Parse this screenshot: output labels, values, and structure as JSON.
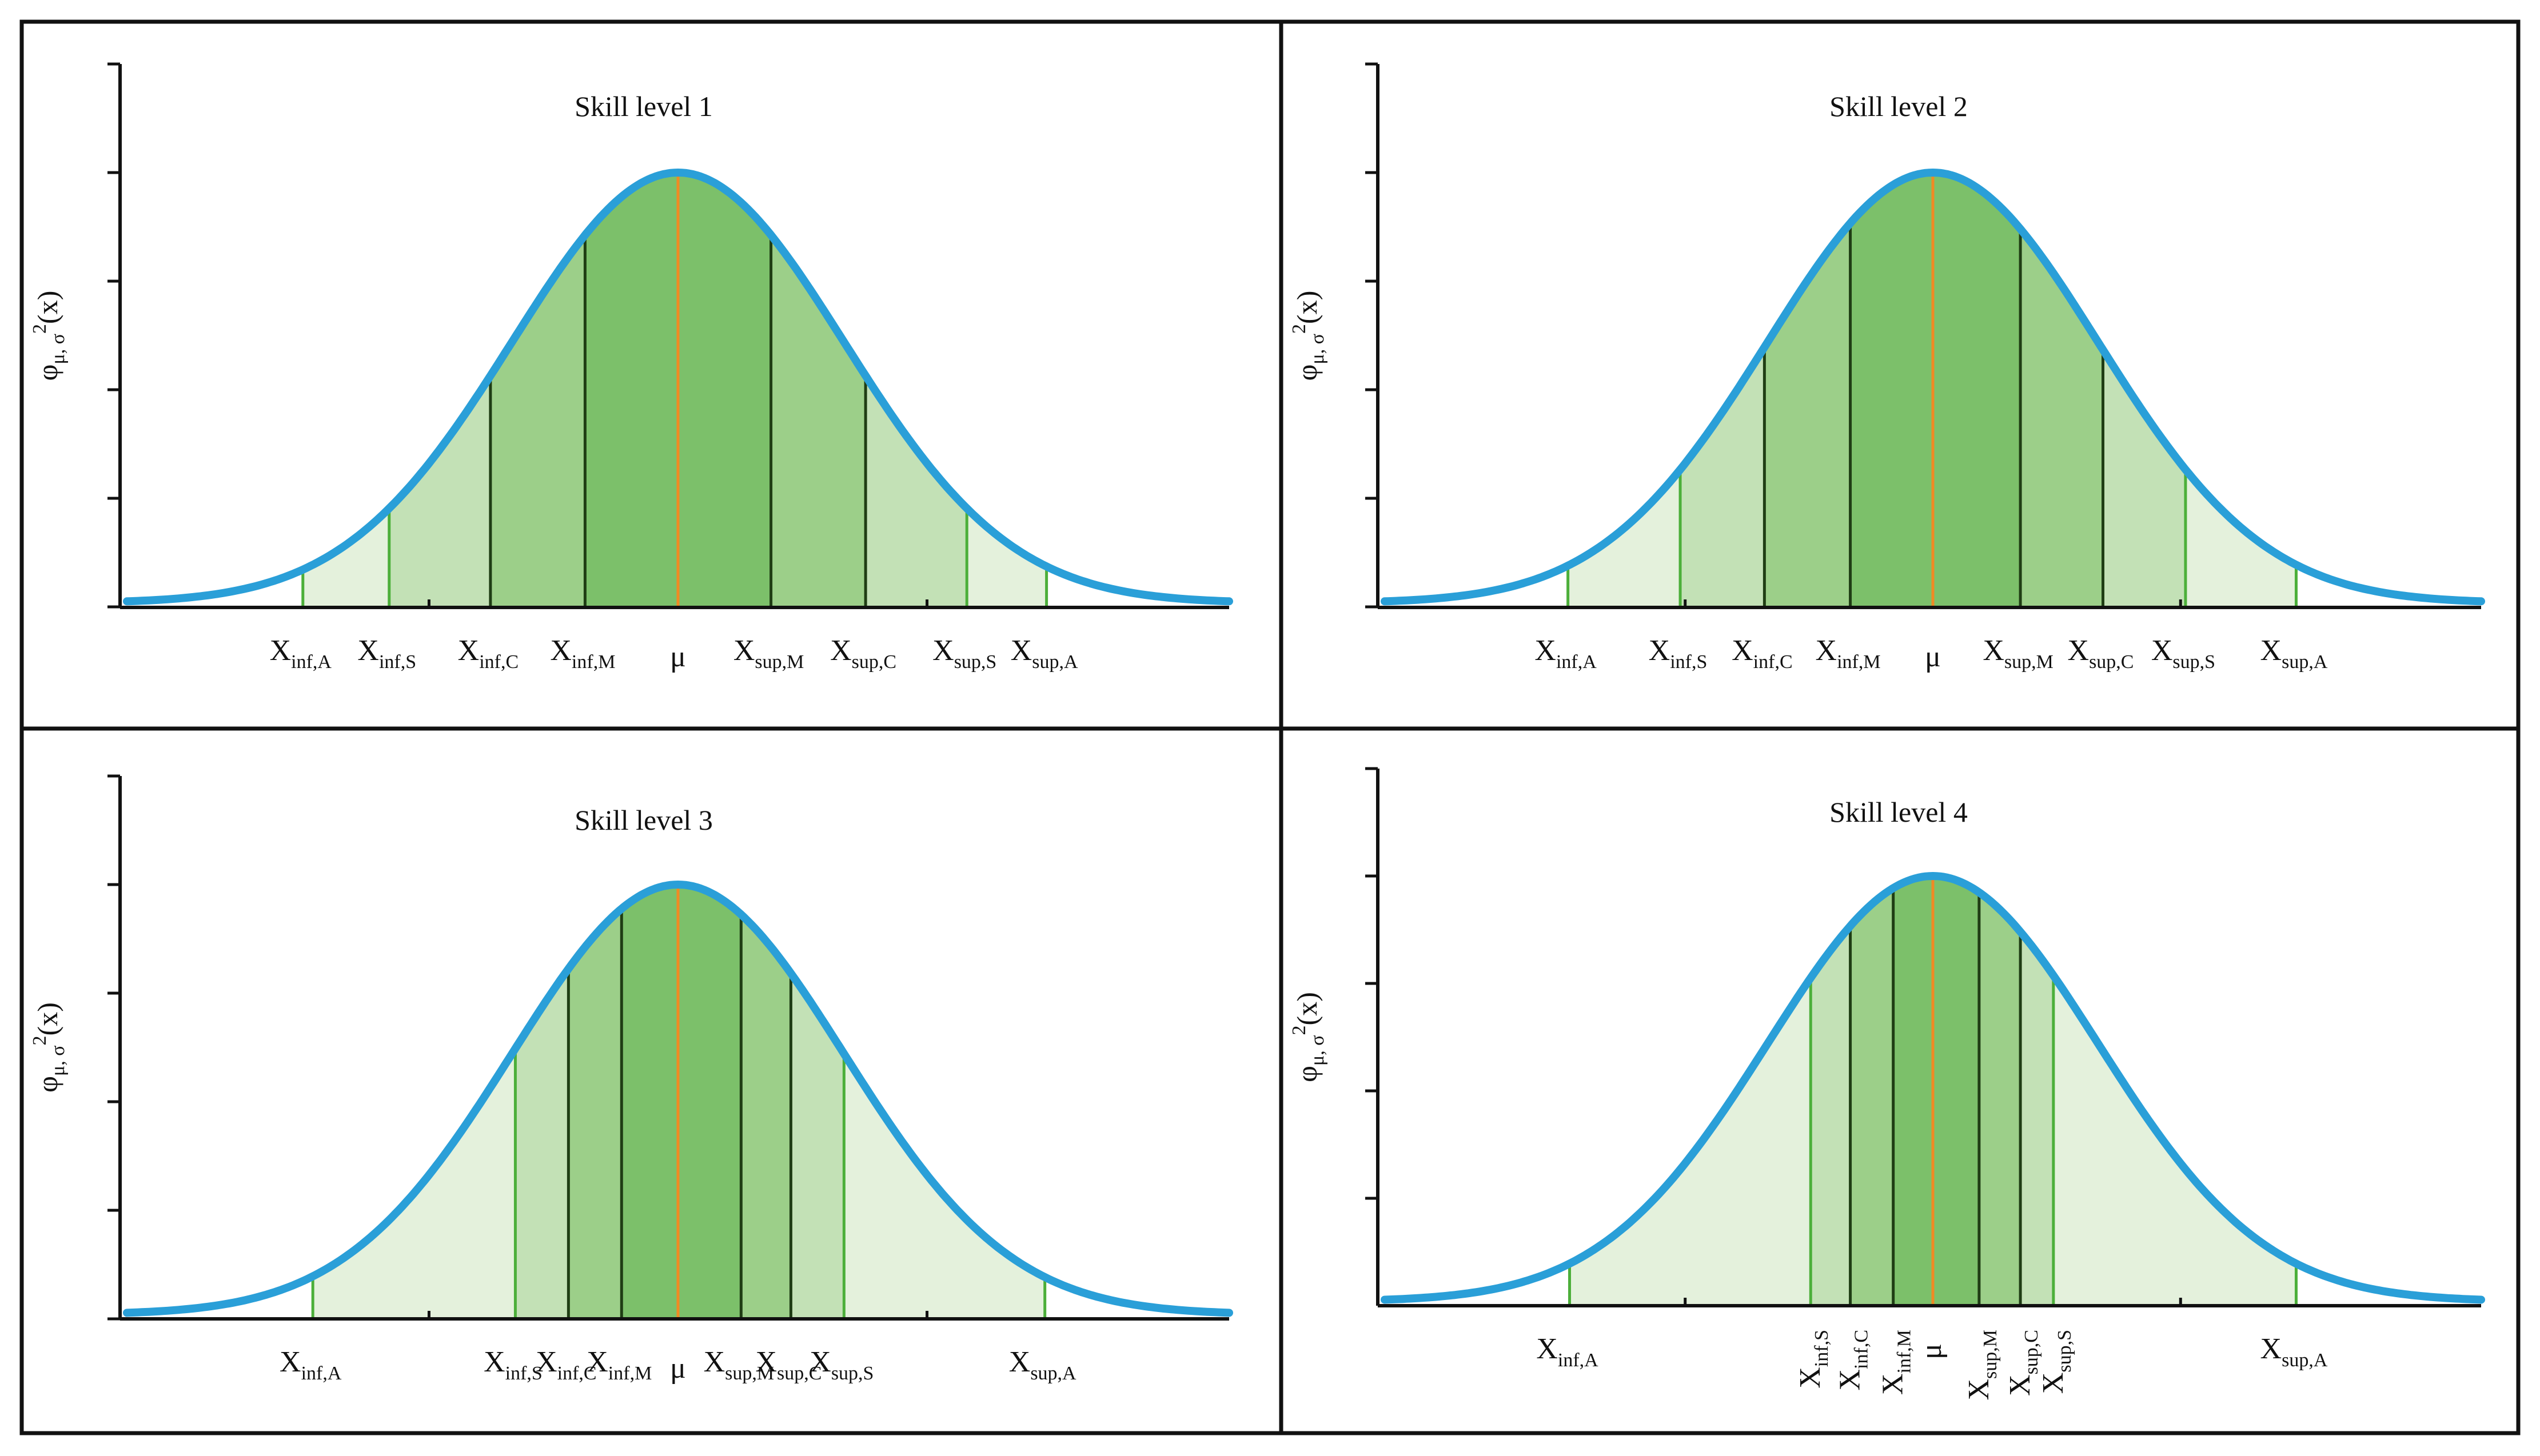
{
  "figure": {
    "colors": {
      "curve": "#2a9fd8",
      "mean_line": "#f08a24",
      "outer_line": "#4caf3a",
      "inner_line": "#1f3d14",
      "fills": [
        "#e4f1dc",
        "#c3e1b6",
        "#9ccf89",
        "#7cc06a"
      ]
    }
  },
  "chart_data": [
    {
      "type": "area",
      "title": "Skill level 1",
      "ylabel": "φ",
      "ylabel_sub": "μ, σ",
      "ylabel_sup": "2",
      "ylabel_tail": "(x)",
      "distribution": "normal",
      "mu": 0,
      "sigma": 1,
      "xlim": [
        -3.32,
        3.32
      ],
      "y_ticks": 6,
      "boundaries": [
        {
          "label": "X",
          "sub": "inf,A",
          "x": -2.26,
          "kind": "outer"
        },
        {
          "label": "X",
          "sub": "inf,S",
          "x": -1.74,
          "kind": "outer"
        },
        {
          "label": "X",
          "sub": "inf,C",
          "x": -1.13,
          "kind": "inner"
        },
        {
          "label": "X",
          "sub": "inf,M",
          "x": -0.56,
          "kind": "inner"
        },
        {
          "label": "μ",
          "sub": "",
          "x": 0.0,
          "kind": "mean"
        },
        {
          "label": "X",
          "sub": "sup,M",
          "x": 0.56,
          "kind": "inner"
        },
        {
          "label": "X",
          "sub": "sup,C",
          "x": 1.13,
          "kind": "inner"
        },
        {
          "label": "X",
          "sub": "sup,S",
          "x": 1.74,
          "kind": "outer"
        },
        {
          "label": "X",
          "sub": "sup,A",
          "x": 2.22,
          "kind": "outer"
        }
      ]
    },
    {
      "type": "area",
      "title": "Skill level 2",
      "ylabel": "φ",
      "ylabel_sub": "μ, σ",
      "ylabel_sup": "2",
      "ylabel_tail": "(x)",
      "distribution": "normal",
      "mu": 0,
      "sigma": 1,
      "xlim": [
        -3.32,
        3.32
      ],
      "y_ticks": 6,
      "boundaries": [
        {
          "label": "X",
          "sub": "inf,A",
          "x": -2.21,
          "kind": "outer"
        },
        {
          "label": "X",
          "sub": "inf,S",
          "x": -1.53,
          "kind": "outer"
        },
        {
          "label": "X",
          "sub": "inf,C",
          "x": -1.02,
          "kind": "inner"
        },
        {
          "label": "X",
          "sub": "inf,M",
          "x": -0.5,
          "kind": "inner"
        },
        {
          "label": "μ",
          "sub": "",
          "x": 0.0,
          "kind": "mean"
        },
        {
          "label": "X",
          "sub": "sup,M",
          "x": 0.53,
          "kind": "inner"
        },
        {
          "label": "X",
          "sub": "sup,C",
          "x": 1.03,
          "kind": "inner"
        },
        {
          "label": "X",
          "sub": "sup,S",
          "x": 1.53,
          "kind": "outer"
        },
        {
          "label": "X",
          "sub": "sup,A",
          "x": 2.2,
          "kind": "outer"
        }
      ]
    },
    {
      "type": "area",
      "title": "Skill level 3",
      "ylabel": "φ",
      "ylabel_sub": "μ, σ",
      "ylabel_sup": "2",
      "ylabel_tail": "(x)",
      "distribution": "normal",
      "mu": 0,
      "sigma": 1,
      "xlim": [
        -3.32,
        3.32
      ],
      "y_ticks": 6,
      "boundaries": [
        {
          "label": "X",
          "sub": "inf,A",
          "x": -2.2,
          "kind": "outer"
        },
        {
          "label": "X",
          "sub": "inf,S",
          "x": -0.98,
          "kind": "outer"
        },
        {
          "label": "X",
          "sub": "inf,C",
          "x": -0.66,
          "kind": "inner"
        },
        {
          "label": "X",
          "sub": "inf,M",
          "x": -0.34,
          "kind": "inner"
        },
        {
          "label": "μ",
          "sub": "",
          "x": 0.0,
          "kind": "mean"
        },
        {
          "label": "X",
          "sub": "sup,M",
          "x": 0.38,
          "kind": "inner"
        },
        {
          "label": "X",
          "sub": "sup,C",
          "x": 0.68,
          "kind": "inner"
        },
        {
          "label": "X",
          "sub": "sup,S",
          "x": 1.0,
          "kind": "outer"
        },
        {
          "label": "X",
          "sub": "sup,A",
          "x": 2.21,
          "kind": "outer"
        }
      ]
    },
    {
      "type": "area",
      "title": "Skill level 4",
      "ylabel": "φ",
      "ylabel_sub": "μ, σ",
      "ylabel_sup": "2",
      "ylabel_tail": "(x)",
      "distribution": "normal",
      "mu": 0,
      "sigma": 1,
      "xlim": [
        -3.32,
        3.32
      ],
      "y_ticks": 5,
      "boundaries": [
        {
          "label": "X",
          "sub": "inf,A",
          "x": -2.2,
          "kind": "outer"
        },
        {
          "label": "X",
          "sub": "inf,S",
          "x": -0.74,
          "kind": "outer"
        },
        {
          "label": "X",
          "sub": "inf,C",
          "x": -0.5,
          "kind": "inner"
        },
        {
          "label": "X",
          "sub": "inf,M",
          "x": -0.24,
          "kind": "inner"
        },
        {
          "label": "μ",
          "sub": "",
          "x": 0.0,
          "kind": "mean"
        },
        {
          "label": "X",
          "sub": "sup,M",
          "x": 0.28,
          "kind": "inner"
        },
        {
          "label": "X",
          "sub": "sup,C",
          "x": 0.53,
          "kind": "inner"
        },
        {
          "label": "X",
          "sub": "sup,S",
          "x": 0.73,
          "kind": "outer"
        },
        {
          "label": "X",
          "sub": "sup,A",
          "x": 2.2,
          "kind": "outer"
        }
      ]
    }
  ]
}
